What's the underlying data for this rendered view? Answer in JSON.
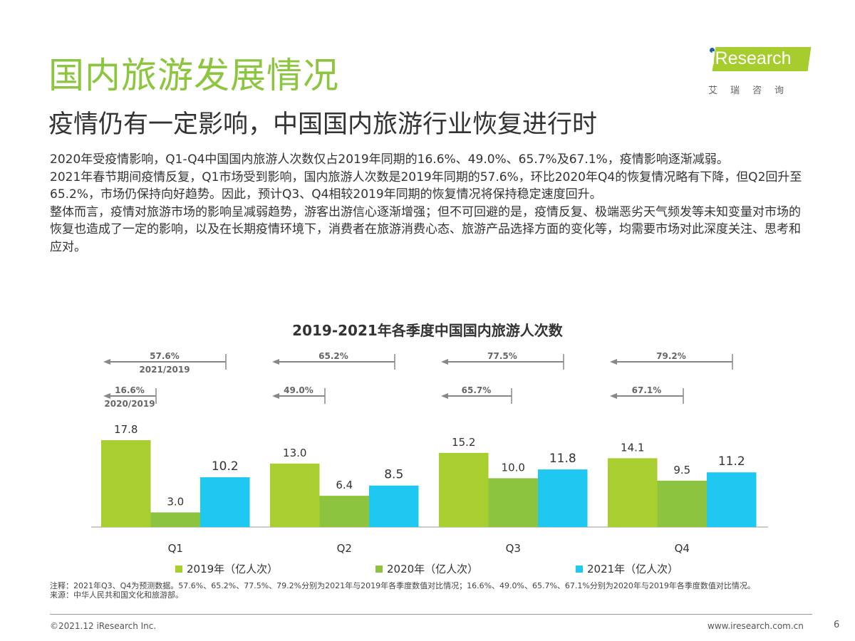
{
  "header": {
    "title": "国内旅游发展情况",
    "subtitle": "疫情仍有一定影响，中国国内旅游行业恢复进行时",
    "logo_text": "iResearch",
    "logo_cn": "艾瑞咨询"
  },
  "body": [
    "2020年受疫情影响，Q1-Q4中国国内旅游人次数仅占2019年同期的16.6%、49.0%、65.7%及67.1%，疫情影响逐渐减弱。",
    "2021年春节期间疫情反复，Q1市场受到影响，国内旅游人次数是2019年同期的57.6%，环比2020年Q4的恢复情况略有下降，但Q2回升至65.2%，市场仍保持向好趋势。因此，预计Q3、Q4相较2019年同期的恢复情况将保持稳定速度回升。",
    "整体而言，疫情对旅游市场的影响呈减弱趋势，游客出游信心逐渐增强；但不可回避的是，疫情反复、极端恶劣天气频发等未知变量对市场的恢复也造成了一定的影响，以及在长期疫情环境下，消费者在旅游消费心态、旅游产品选择方面的变化等，均需要市场对此深度关注、思考和应对。"
  ],
  "chart_data": {
    "type": "bar",
    "title": "2019-2021年各季度中国国内旅游人次数",
    "categories": [
      "Q1",
      "Q2",
      "Q3",
      "Q4"
    ],
    "series": [
      {
        "name": "2019年（亿人次）",
        "color": "#a8cf2f",
        "values": [
          17.8,
          13.0,
          15.2,
          14.1
        ]
      },
      {
        "name": "2020年（亿人次）",
        "color": "#8cc43f",
        "values": [
          3.0,
          6.4,
          10.0,
          9.5
        ]
      },
      {
        "name": "2021年（亿人次）",
        "color": "#1ec8f0",
        "values": [
          10.2,
          8.5,
          11.8,
          11.2
        ]
      }
    ],
    "ratio_2021_2019": {
      "label": "2021/2019",
      "values": [
        "57.6%",
        "65.2%",
        "77.5%",
        "79.2%"
      ]
    },
    "ratio_2020_2019": {
      "label": "2020/2019",
      "values": [
        "16.6%",
        "49.0%",
        "65.7%",
        "67.1%"
      ]
    },
    "ylim": [
      0,
      20
    ]
  },
  "notes": [
    "注释：2021年Q3、Q4为预测数据。57.6%、65.2%、77.5%、79.2%分别为2021年与2019年各季度数值对比情况；16.6%、49.0%、65.7%、67.1%分别为2020年与2019年各季度数值对比情况。",
    "来源：中华人民共和国文化和旅游部。"
  ],
  "footer": {
    "copyright": "©2021.12 iResearch Inc.",
    "site": "www.iresearch.com.cn",
    "page": "6"
  }
}
